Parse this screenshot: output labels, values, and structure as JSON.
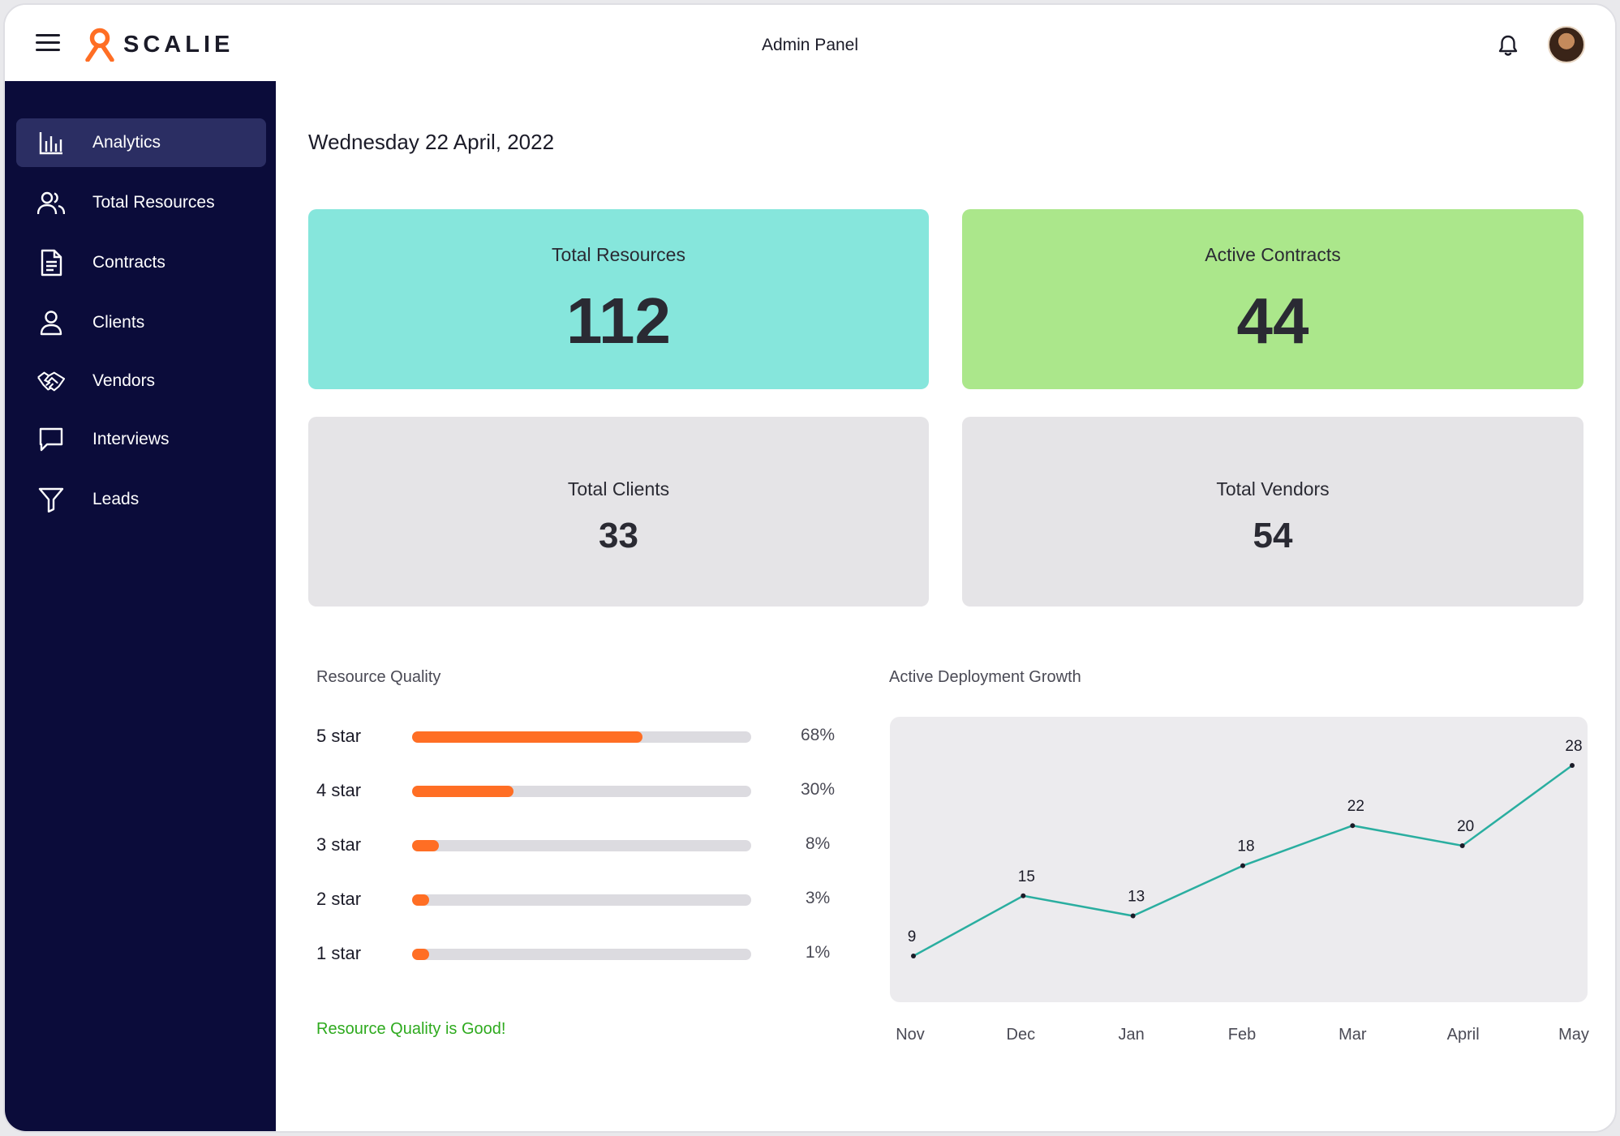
{
  "header": {
    "brand": "SCALIE",
    "title": "Admin Panel",
    "brand_color": "#ff6e24"
  },
  "sidebar": {
    "items": [
      {
        "label": "Analytics",
        "icon": "bar-chart-icon",
        "active": true
      },
      {
        "label": "Total Resources",
        "icon": "users-icon",
        "active": false
      },
      {
        "label": "Contracts",
        "icon": "document-icon",
        "active": false
      },
      {
        "label": "Clients",
        "icon": "user-icon",
        "active": false
      },
      {
        "label": "Vendors",
        "icon": "handshake-icon",
        "active": false
      },
      {
        "label": "Interviews",
        "icon": "chat-icon",
        "active": false
      },
      {
        "label": "Leads",
        "icon": "filter-icon",
        "active": false
      }
    ]
  },
  "main": {
    "date": "Wednesday 22 April, 2022",
    "cards": {
      "resources": {
        "title": "Total Resources",
        "value": "112",
        "color": "#86e6dc"
      },
      "contracts": {
        "title": "Active Contracts",
        "value": "44",
        "color": "#abe78b"
      },
      "clients": {
        "title": "Total Clients",
        "value": "33",
        "color": "#e5e4e7"
      },
      "vendors": {
        "title": "Total Vendors",
        "value": "54",
        "color": "#e5e4e7"
      }
    },
    "resource_quality": {
      "title": "Resource Quality",
      "rows": [
        {
          "label": "5 star",
          "percent": 68,
          "percent_label": "68%"
        },
        {
          "label": "4 star",
          "percent": 30,
          "percent_label": "30%"
        },
        {
          "label": "3 star",
          "percent": 8,
          "percent_label": "8%"
        },
        {
          "label": "2 star",
          "percent": 3,
          "percent_label": "3%"
        },
        {
          "label": "1 star",
          "percent": 1,
          "percent_label": "1%"
        }
      ],
      "status": "Resource Quality is Good!",
      "status_color": "#2eaa1e",
      "bar_color": "#ff6e24"
    },
    "growth": {
      "title": "Active Deployment Growth"
    }
  },
  "chart_data": {
    "type": "line",
    "title": "Active Deployment Growth",
    "categories": [
      "Nov",
      "Dec",
      "Jan",
      "Feb",
      "Mar",
      "April",
      "May"
    ],
    "series": [
      {
        "values": [
          9,
          15,
          13,
          18,
          22,
          20,
          28
        ],
        "color": "#2aaea0"
      }
    ],
    "data_labels": [
      "9",
      "15",
      "13",
      "18",
      "22",
      "20",
      "28"
    ],
    "grid": false,
    "legend": "none"
  }
}
